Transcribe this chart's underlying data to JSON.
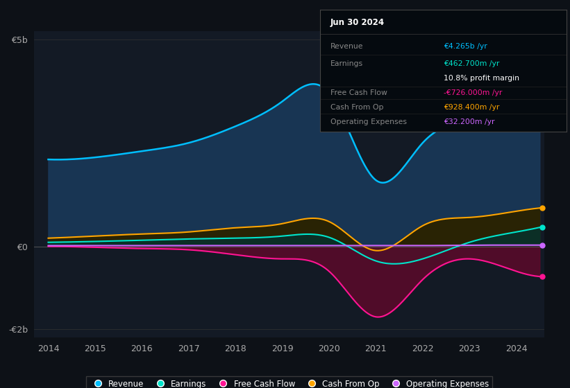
{
  "background_color": "#0d1117",
  "plot_bg_color": "#131a25",
  "years": [
    2014,
    2015,
    2016,
    2017,
    2018,
    2019,
    2020,
    2021,
    2022,
    2023,
    2024,
    2024.5
  ],
  "revenue": [
    2.1,
    2.15,
    2.3,
    2.5,
    2.9,
    3.5,
    3.7,
    1.6,
    2.5,
    3.2,
    4.1,
    4.265
  ],
  "earnings": [
    0.1,
    0.12,
    0.15,
    0.18,
    0.2,
    0.25,
    0.22,
    -0.35,
    -0.3,
    0.1,
    0.35,
    0.46
  ],
  "free_cash_flow": [
    0.0,
    -0.02,
    -0.05,
    -0.08,
    -0.2,
    -0.3,
    -0.6,
    -1.7,
    -0.8,
    -0.3,
    -0.6,
    -0.726
  ],
  "cash_from_op": [
    0.2,
    0.25,
    0.3,
    0.35,
    0.45,
    0.55,
    0.6,
    -0.1,
    0.5,
    0.7,
    0.85,
    0.928
  ],
  "operating_expenses": [
    0.02,
    0.02,
    0.02,
    0.02,
    0.02,
    0.02,
    0.02,
    0.02,
    0.02,
    0.03,
    0.032,
    0.032
  ],
  "ylim": [
    -2.2,
    5.2
  ],
  "revenue_color": "#00bfff",
  "earnings_color": "#00e5cc",
  "free_cash_flow_color": "#ff1493",
  "cash_from_op_color": "#ffa500",
  "operating_expenses_color": "#cc66ff",
  "revenue_fill_color": "#1a3a5c",
  "info_title": "Jun 30 2024",
  "info_revenue_label": "Revenue",
  "info_revenue_value": "€4.265b /yr",
  "info_earnings_label": "Earnings",
  "info_earnings_value": "€462.700m /yr",
  "info_margin": "10.8% profit margin",
  "info_fcf_label": "Free Cash Flow",
  "info_fcf_value": "-€726.000m /yr",
  "info_cfo_label": "Cash From Op",
  "info_cfo_value": "€928.400m /yr",
  "info_opex_label": "Operating Expenses",
  "info_opex_value": "€32.200m /yr"
}
